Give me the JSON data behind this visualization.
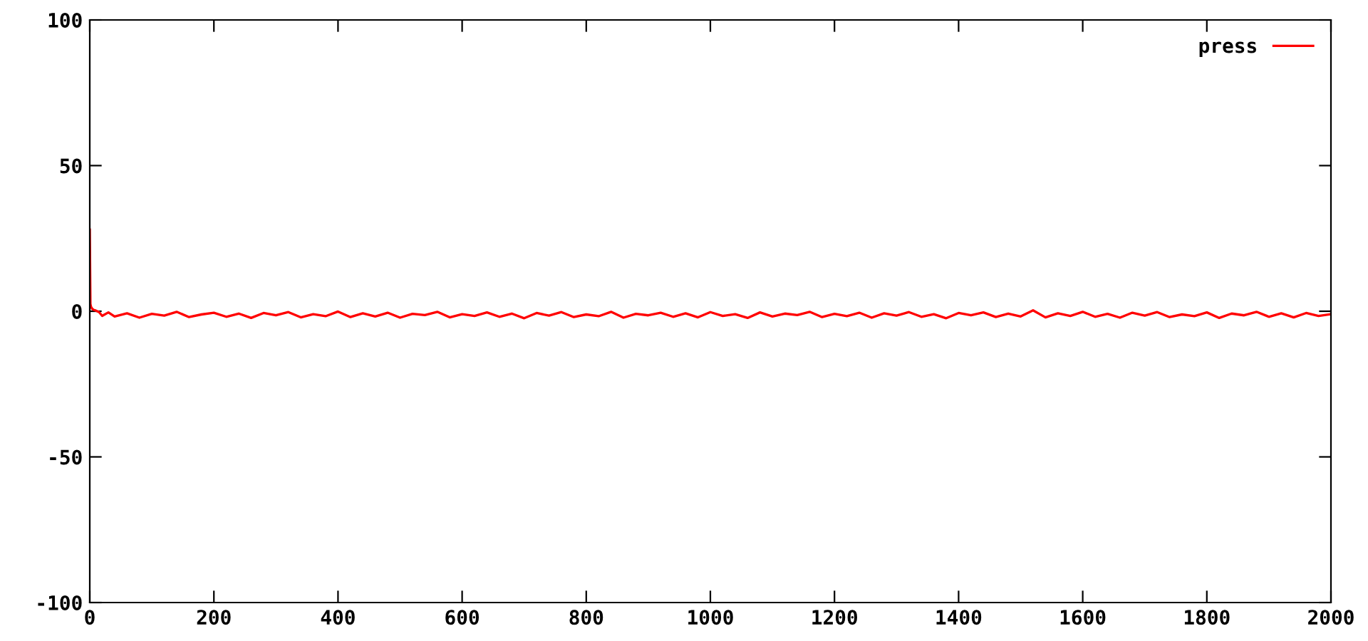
{
  "chart_data": {
    "type": "line",
    "xlim": [
      0,
      2000
    ],
    "ylim": [
      -100,
      100
    ],
    "xticks": [
      0,
      200,
      400,
      600,
      800,
      1000,
      1200,
      1400,
      1600,
      1800,
      2000
    ],
    "yticks": [
      -100,
      -50,
      0,
      50,
      100
    ],
    "grid": false,
    "legend": "top right",
    "line_style": "solid",
    "marker": "none",
    "series": [
      {
        "name": "press",
        "color": "#ff0000",
        "x": [
          0,
          1,
          2,
          4,
          6,
          10,
          15,
          20,
          30,
          40,
          60,
          80,
          100,
          120,
          140,
          160,
          180,
          200,
          220,
          240,
          260,
          280,
          300,
          320,
          340,
          360,
          380,
          400,
          420,
          440,
          460,
          480,
          500,
          520,
          540,
          560,
          580,
          600,
          620,
          640,
          660,
          680,
          700,
          720,
          740,
          760,
          780,
          800,
          820,
          840,
          860,
          880,
          900,
          920,
          940,
          960,
          980,
          1000,
          1020,
          1040,
          1060,
          1080,
          1100,
          1120,
          1140,
          1160,
          1180,
          1200,
          1220,
          1240,
          1260,
          1280,
          1300,
          1320,
          1340,
          1360,
          1380,
          1400,
          1420,
          1440,
          1460,
          1480,
          1500,
          1520,
          1540,
          1560,
          1580,
          1600,
          1620,
          1640,
          1660,
          1680,
          1700,
          1720,
          1740,
          1760,
          1780,
          1800,
          1820,
          1840,
          1860,
          1880,
          1900,
          1920,
          1940,
          1960,
          1980,
          2000
        ],
        "values": [
          28,
          2.5,
          1.5,
          0.8,
          0.5,
          0.2,
          -0.3,
          -1.6,
          -0.4,
          -1.8,
          -0.7,
          -2.2,
          -0.9,
          -1.5,
          -0.2,
          -2.0,
          -1.1,
          -0.5,
          -1.9,
          -0.8,
          -2.3,
          -0.6,
          -1.4,
          -0.3,
          -2.1,
          -1.0,
          -1.7,
          -0.1,
          -2.0,
          -0.7,
          -1.8,
          -0.5,
          -2.2,
          -0.9,
          -1.3,
          -0.2,
          -2.1,
          -1.0,
          -1.6,
          -0.4,
          -1.9,
          -0.8,
          -2.4,
          -0.6,
          -1.5,
          -0.3,
          -2.0,
          -1.1,
          -1.7,
          -0.2,
          -2.2,
          -0.9,
          -1.4,
          -0.5,
          -1.9,
          -0.7,
          -2.1,
          -0.3,
          -1.6,
          -1.0,
          -2.3,
          -0.4,
          -1.8,
          -0.8,
          -1.3,
          -0.2,
          -2.0,
          -0.9,
          -1.7,
          -0.5,
          -2.2,
          -0.7,
          -1.5,
          -0.3,
          -1.9,
          -1.0,
          -2.4,
          -0.6,
          -1.4,
          -0.4,
          -2.0,
          -0.8,
          -1.8,
          0.3,
          -2.1,
          -0.7,
          -1.6,
          -0.2,
          -1.9,
          -0.9,
          -2.2,
          -0.5,
          -1.5,
          -0.3,
          -2.0,
          -1.1,
          -1.7,
          -0.4,
          -2.3,
          -0.8,
          -1.4,
          -0.2,
          -1.9,
          -0.7,
          -2.1,
          -0.6,
          -1.6,
          -1.0
        ]
      }
    ]
  }
}
